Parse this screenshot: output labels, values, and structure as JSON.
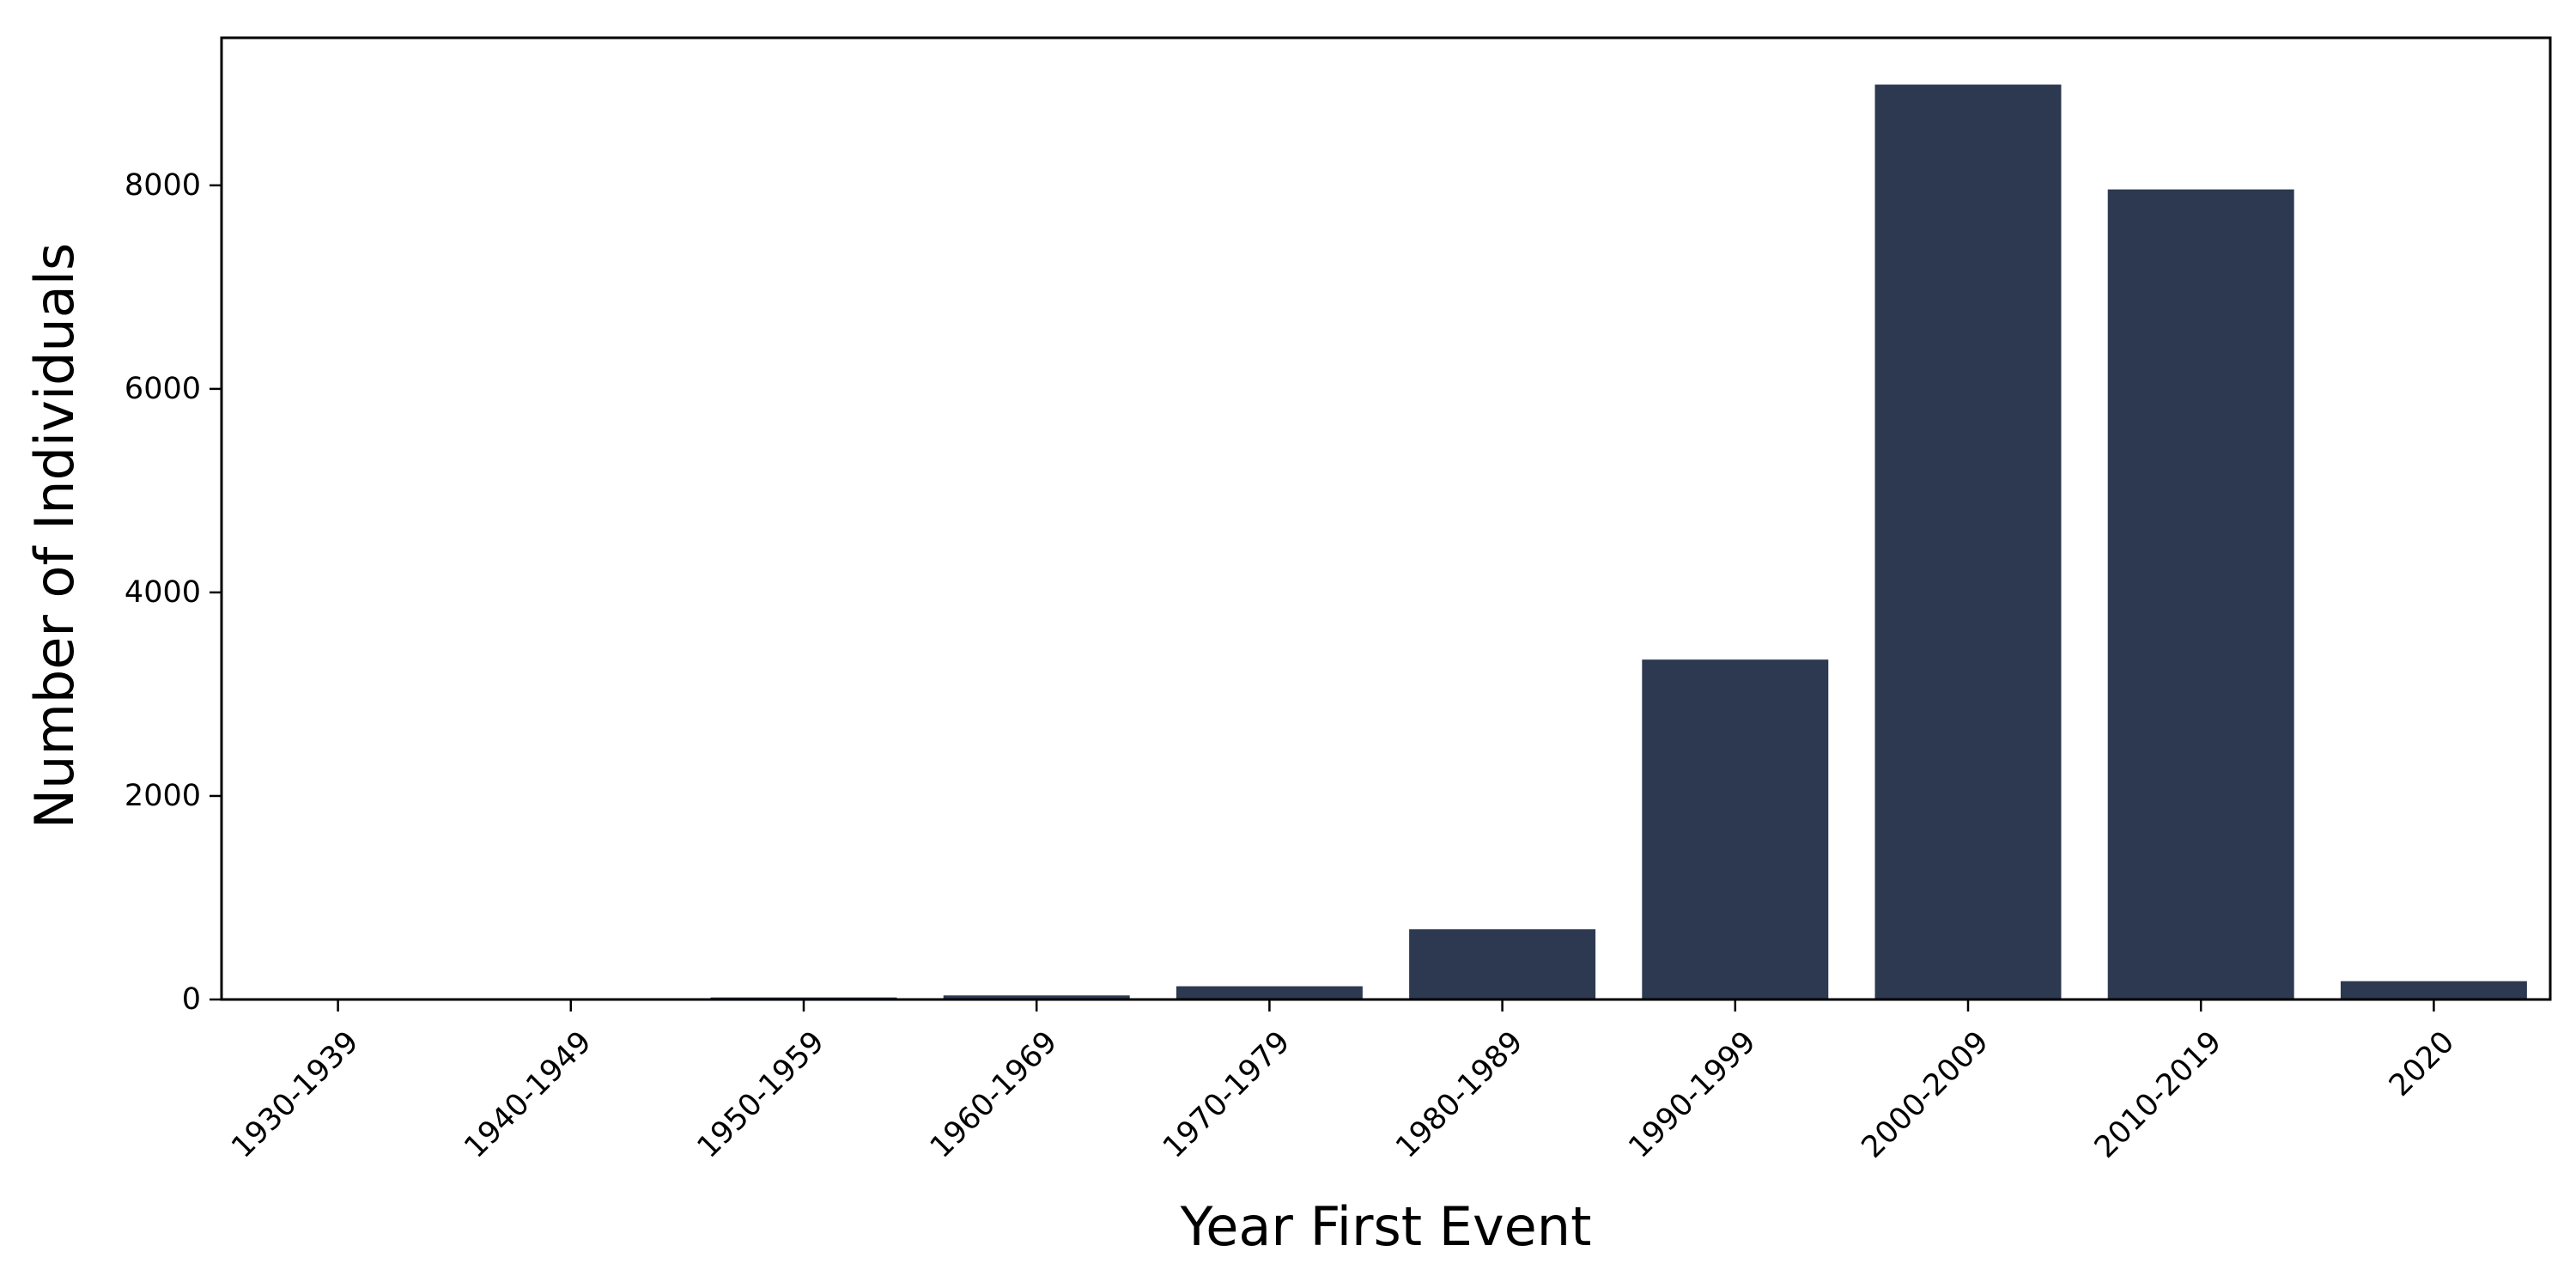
{
  "chart_data": {
    "type": "bar",
    "categories": [
      "1930-1939",
      "1940-1949",
      "1950-1959",
      "1960-1969",
      "1970-1979",
      "1980-1989",
      "1990-1999",
      "2000-2009",
      "2010-2019",
      "2020"
    ],
    "values": [
      5,
      8,
      20,
      40,
      130,
      690,
      3340,
      8990,
      7960,
      180
    ],
    "xlabel": "Year First Event",
    "ylabel": "Number of Individuals",
    "yticks": [
      0,
      2000,
      4000,
      6000,
      8000
    ],
    "ylim": [
      0,
      9450
    ],
    "bar_color": "#2d3950",
    "grid": false,
    "legend": "none"
  }
}
